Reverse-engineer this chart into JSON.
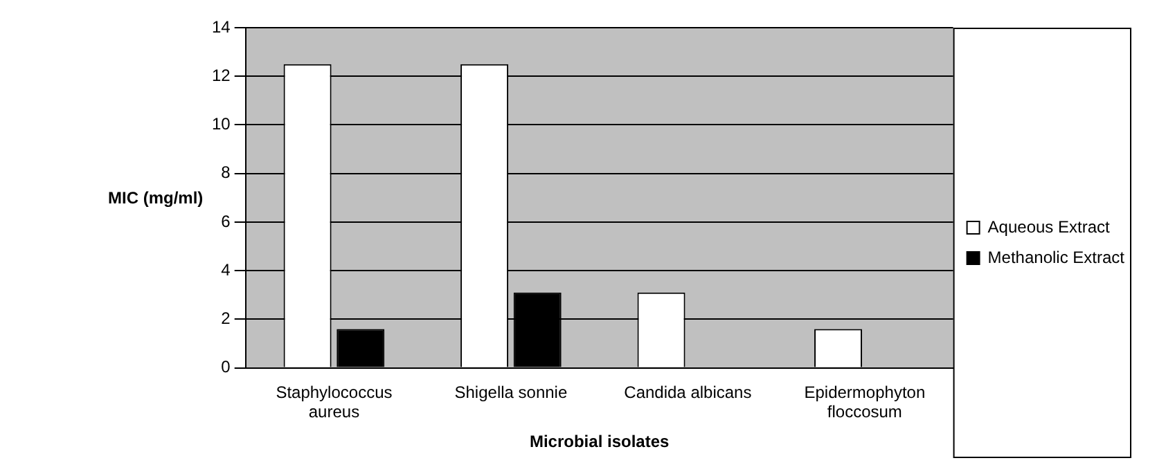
{
  "chart_data": {
    "type": "bar",
    "xlabel": "Microbial isolates",
    "ylabel": "MIC (mg/ml)",
    "categories": [
      "Staphylococcus aureus",
      "Shigella sonnie",
      "Candida albicans",
      "Epidermophyton floccosum"
    ],
    "series": [
      {
        "name": "Aqueous Extract",
        "color": "#ffffff",
        "values": [
          12.5,
          12.5,
          3.1,
          1.6
        ]
      },
      {
        "name": "Methanolic Extract",
        "color": "#000000",
        "values": [
          1.6,
          3.1,
          0,
          0
        ]
      }
    ],
    "ylim": [
      0,
      14
    ],
    "yticks": [
      0,
      2,
      4,
      6,
      8,
      10,
      12,
      14
    ],
    "grid": "y",
    "legend": "right"
  }
}
